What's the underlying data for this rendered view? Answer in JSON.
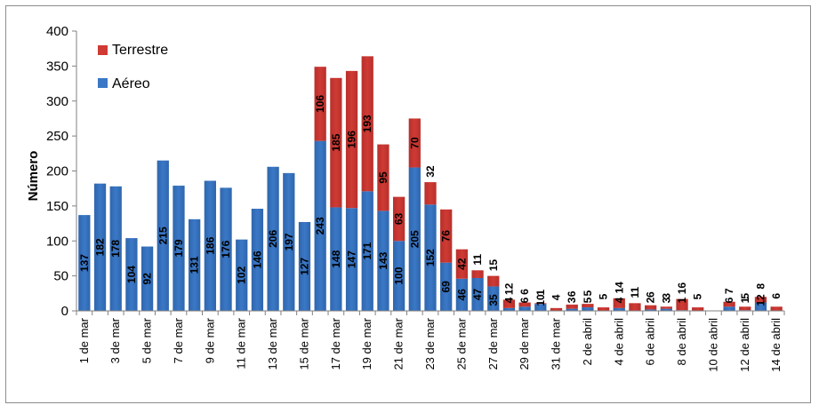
{
  "chart_data": {
    "type": "bar",
    "stacked": true,
    "ylabel": "Número",
    "ylim": [
      0,
      400
    ],
    "yticks": [
      0,
      50,
      100,
      150,
      200,
      250,
      300,
      350,
      400
    ],
    "grid": false,
    "legend_position": "top-left",
    "categories": [
      "1 de mar",
      "2 de mar",
      "3 de mar",
      "4 de mar",
      "5 de mar",
      "6 de mar",
      "7 de mar",
      "8 de mar",
      "9 de mar",
      "10 de mar",
      "11 de mar",
      "12 de mar",
      "13 de mar",
      "14 de mar",
      "15 de mar",
      "16 de mar",
      "17 de mar",
      "18 de mar",
      "19 de mar",
      "20 de mar",
      "21 de mar",
      "22 de mar",
      "23 de mar",
      "24 de mar",
      "25 de mar",
      "26 de mar",
      "27 de mar",
      "28 de mar",
      "29 de mar",
      "30 de mar",
      "31 de mar",
      "1 de abril",
      "2 de abril",
      "3 de abril",
      "4 de abril",
      "5 de abril",
      "6 de abril",
      "7 de abril",
      "8 de abril",
      "9 de abril",
      "10 de abril",
      "11 de abril",
      "12 de abril",
      "13 de abril",
      "14 de abril"
    ],
    "xtick_labels": [
      "1 de mar",
      "",
      "3 de mar",
      "",
      "5 de mar",
      "",
      "7 de mar",
      "",
      "9 de mar",
      "",
      "11 de mar",
      "",
      "13 de mar",
      "",
      "15 de mar",
      "",
      "17 de mar",
      "",
      "19 de mar",
      "",
      "21 de mar",
      "",
      "23 de mar",
      "",
      "25 de mar",
      "",
      "27 de mar",
      "",
      "29 de mar",
      "",
      "31 de mar",
      "",
      "2 de abril",
      "",
      "4 de abril",
      "",
      "6 de abril",
      "",
      "8 de abril",
      "",
      "10 de abril",
      "",
      "12 de abril",
      "",
      "14 de abril"
    ],
    "series": [
      {
        "name": "Aéreo",
        "color": "#3a78c6",
        "values": [
          137,
          182,
          178,
          104,
          92,
          215,
          179,
          131,
          186,
          176,
          102,
          146,
          206,
          197,
          127,
          243,
          148,
          147,
          171,
          143,
          100,
          205,
          152,
          69,
          46,
          47,
          35,
          4,
          6,
          10,
          0,
          3,
          5,
          0,
          4,
          0,
          2,
          3,
          1,
          0,
          0,
          6,
          1,
          12,
          0
        ],
        "labels": [
          "137",
          "182",
          "178",
          "104",
          "92",
          "215",
          "179",
          "131",
          "186",
          "176",
          "102",
          "146",
          "206",
          "197",
          "127",
          "243",
          "148",
          "147",
          "171",
          "143",
          "100",
          "205",
          "152",
          "69",
          "46",
          "47",
          "35",
          "4",
          "6",
          "10",
          "",
          "3",
          "5",
          "",
          "4",
          "",
          "2",
          "3",
          "1",
          "",
          "",
          "6",
          "1",
          "12",
          ""
        ]
      },
      {
        "name": "Terrestre",
        "color": "#cf3a34",
        "values": [
          0,
          0,
          0,
          0,
          0,
          0,
          0,
          0,
          0,
          0,
          0,
          0,
          0,
          0,
          0,
          106,
          185,
          196,
          193,
          95,
          63,
          70,
          32,
          76,
          42,
          11,
          15,
          12,
          6,
          1,
          4,
          6,
          5,
          5,
          14,
          11,
          6,
          3,
          16,
          5,
          0,
          7,
          5,
          8,
          6
        ],
        "labels": [
          "",
          "",
          "",
          "",
          "",
          "",
          "",
          "",
          "",
          "",
          "",
          "",
          "",
          "",
          "",
          "106",
          "185",
          "196",
          "193",
          "95",
          "63",
          "70",
          "32",
          "76",
          "42",
          "11",
          "15",
          "12",
          "6",
          "1",
          "4",
          "6",
          "5",
          "5",
          "14",
          "11",
          "6",
          "3",
          "16",
          "5",
          "",
          "7",
          "5",
          "8",
          "6"
        ]
      }
    ]
  }
}
